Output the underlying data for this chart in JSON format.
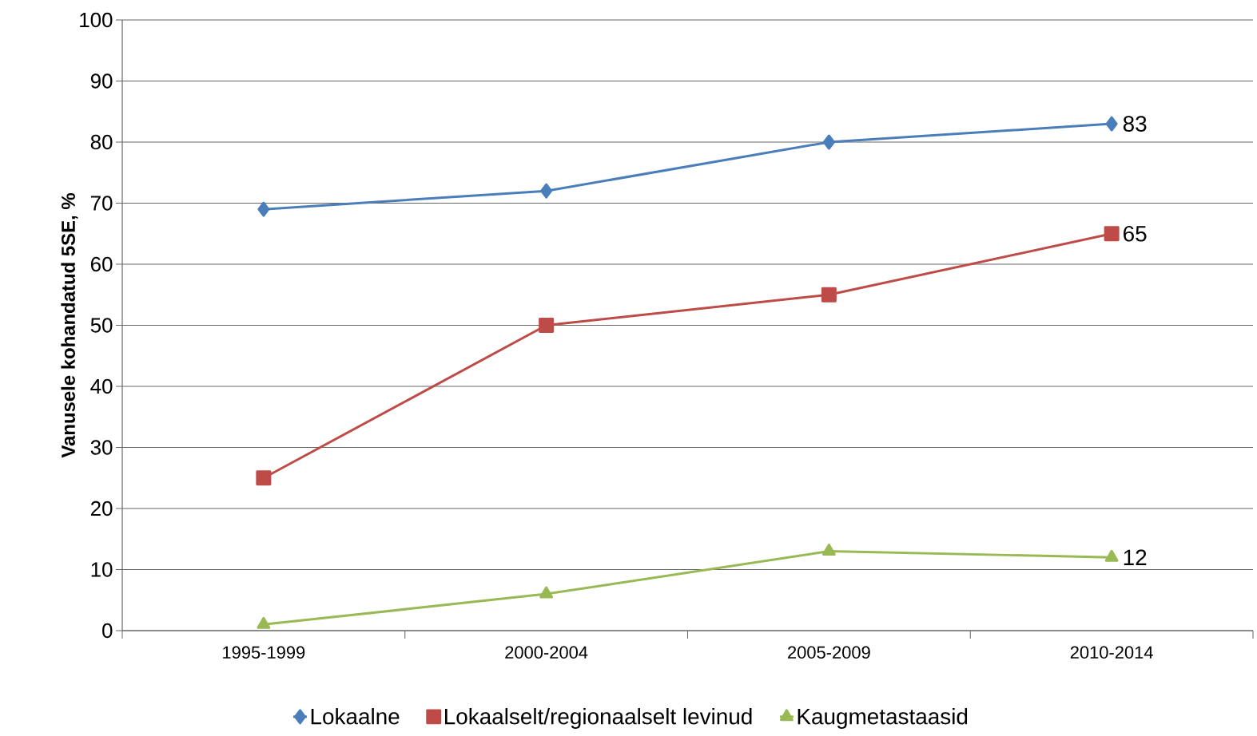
{
  "chart_data": {
    "type": "line",
    "ylabel": "Vanusele kohandatud 5SE, %",
    "categories": [
      "1995-1999",
      "2000-2004",
      "2005-2009",
      "2010-2014"
    ],
    "series": [
      {
        "name": "Lokaalne",
        "color": "#4a7ebb",
        "marker": "diamond",
        "values": [
          69,
          72,
          80,
          83
        ],
        "value_labels": [
          null,
          null,
          null,
          "83"
        ]
      },
      {
        "name": "Lokaalselt/regionaalselt levinud",
        "color": "#be4b48",
        "marker": "square",
        "values": [
          25,
          50,
          55,
          65
        ],
        "value_labels": [
          null,
          null,
          null,
          "65"
        ]
      },
      {
        "name": "Kaugmetastaasid",
        "color": "#98b954",
        "marker": "triangle",
        "values": [
          1,
          6,
          13,
          12
        ],
        "value_labels": [
          null,
          null,
          null,
          "12"
        ]
      }
    ],
    "ylim": [
      0,
      100
    ],
    "yticks": [
      0,
      10,
      20,
      30,
      40,
      50,
      60,
      70,
      80,
      90,
      100
    ],
    "grid": "y",
    "legend": "bottom",
    "line_style": "solid"
  }
}
